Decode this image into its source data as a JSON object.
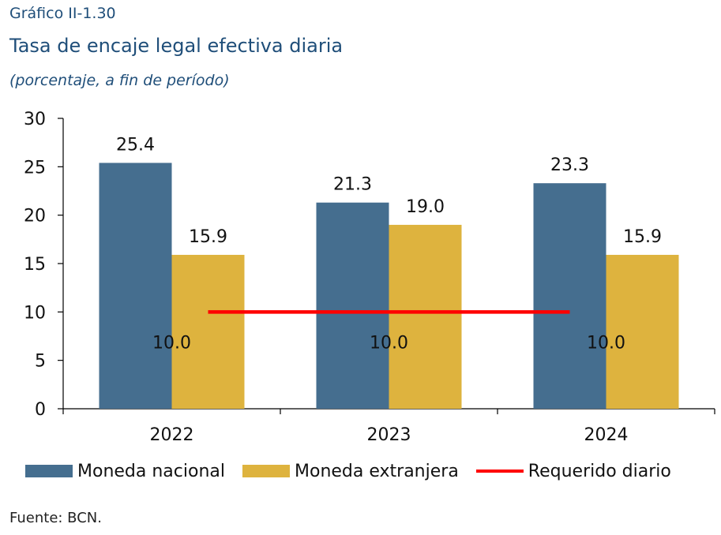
{
  "figure": {
    "number": "Gráfico II-1.30",
    "title": "Tasa de encaje legal efectiva diaria",
    "subtitle": "(porcentaje, a fin de período)",
    "source": "Fuente: BCN."
  },
  "chart_data": {
    "type": "bar",
    "categories": [
      "2022",
      "2023",
      "2024"
    ],
    "series": [
      {
        "name": "Moneda nacional",
        "type": "bar",
        "color": "#456e8f",
        "values": [
          25.4,
          21.3,
          23.3
        ]
      },
      {
        "name": "Moneda extranjera",
        "type": "bar",
        "color": "#deb33e",
        "values": [
          15.9,
          19.0,
          15.9
        ]
      },
      {
        "name": "Requerido diario",
        "type": "line",
        "color": "#ff0000",
        "values": [
          10.0,
          10.0,
          10.0
        ]
      }
    ],
    "ylim": [
      0,
      30
    ],
    "yticks": [
      "0",
      "5",
      "10",
      "15",
      "20",
      "25",
      "30"
    ],
    "bar_value_labels": [
      [
        "25.4",
        "21.3",
        "23.3"
      ],
      [
        "15.9",
        "19.0",
        "15.9"
      ]
    ],
    "line_value_labels": [
      "10.0",
      "10.0",
      "10.0"
    ],
    "grid": false,
    "legend_position": "bottom"
  }
}
